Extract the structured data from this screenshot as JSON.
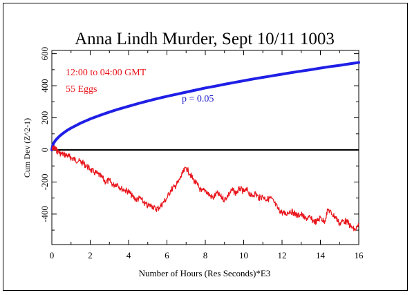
{
  "chart_data": {
    "type": "line",
    "title": "Anna Lindh Murder, Sept 10/11 1003",
    "xlabel": "Number of Hours (Res Seconds)*E3",
    "ylabel": "Cum Dev (Z^2-1)",
    "xlim": [
      0,
      16
    ],
    "ylim": [
      -590,
      620
    ],
    "x_ticks": [
      0,
      2,
      4,
      6,
      8,
      10,
      12,
      14,
      16
    ],
    "y_ticks": [
      -400,
      -200,
      0,
      200,
      400,
      600
    ],
    "annotations": [
      {
        "text": "12:00 to 04:00 GMT",
        "color": "#e8141a"
      },
      {
        "text": "55 Eggs",
        "color": "#e8141a"
      },
      {
        "text": "p = 0.05",
        "color": "#1a1acc"
      }
    ],
    "zero_line": true,
    "colors": {
      "cumdev": "#e8141a",
      "envelope": "#1f1fe6",
      "axis": "#000000"
    },
    "series": [
      {
        "role": "cumulative-deviation",
        "color": "#e8141a",
        "x": [
          0,
          0.1,
          0.2,
          0.3,
          0.5,
          0.7,
          0.9,
          1.0,
          1.2,
          1.4,
          1.6,
          1.8,
          2.0,
          2.2,
          2.4,
          2.6,
          2.8,
          3.0,
          3.2,
          3.4,
          3.6,
          3.8,
          4.0,
          4.2,
          4.4,
          4.6,
          4.8,
          5.0,
          5.2,
          5.4,
          5.6,
          5.8,
          6.0,
          6.2,
          6.4,
          6.6,
          6.8,
          7.0,
          7.2,
          7.4,
          7.6,
          7.8,
          8.0,
          8.2,
          8.4,
          8.6,
          8.8,
          9.0,
          9.2,
          9.4,
          9.6,
          9.8,
          10.0,
          10.2,
          10.4,
          10.6,
          10.8,
          11.0,
          11.2,
          11.4,
          11.6,
          11.8,
          12.0,
          12.2,
          12.4,
          12.6,
          12.8,
          13.0,
          13.2,
          13.4,
          13.6,
          13.8,
          14.0,
          14.2,
          14.4,
          14.6,
          14.8,
          15.0,
          15.2,
          15.4,
          15.6,
          15.8,
          16.0
        ],
        "values": [
          0,
          15,
          5,
          -10,
          -25,
          -30,
          -40,
          -50,
          -60,
          -70,
          -80,
          -100,
          -120,
          -140,
          -150,
          -170,
          -200,
          -190,
          -220,
          -210,
          -240,
          -250,
          -260,
          -290,
          -310,
          -300,
          -330,
          -350,
          -345,
          -370,
          -360,
          -330,
          -300,
          -250,
          -230,
          -200,
          -150,
          -110,
          -150,
          -190,
          -220,
          -260,
          -250,
          -280,
          -300,
          -270,
          -290,
          -310,
          -280,
          -250,
          -270,
          -240,
          -260,
          -250,
          -290,
          -270,
          -300,
          -290,
          -310,
          -300,
          -330,
          -370,
          -390,
          -400,
          -380,
          -390,
          -410,
          -400,
          -430,
          -420,
          -440,
          -450,
          -420,
          -450,
          -370,
          -400,
          -420,
          -460,
          -440,
          -450,
          -480,
          -500,
          -470
        ]
      },
      {
        "role": "envelope",
        "name": "p = 0.05",
        "color": "#1f1fe6",
        "x": [
          0,
          0.05,
          0.1,
          0.2,
          0.4,
          0.6,
          0.8,
          1.0,
          1.5,
          2.0,
          2.5,
          3.0,
          3.5,
          4.0,
          4.5,
          5.0,
          5.5,
          6.0,
          6.5,
          7.0,
          7.5,
          8.0,
          8.5,
          9.0,
          9.5,
          10.0,
          10.5,
          11.0,
          11.5,
          12.0,
          12.5,
          13.0,
          13.5,
          14.0,
          14.5,
          15.0,
          15.5,
          16.0
        ],
        "values": [
          0,
          30,
          43,
          61,
          86,
          105,
          122,
          136,
          167,
          193,
          215,
          236,
          255,
          272,
          289,
          305,
          320,
          334,
          347,
          360,
          373,
          386,
          397,
          409,
          420,
          431,
          442,
          452,
          462,
          472,
          482,
          491,
          500,
          510,
          519,
          527,
          536,
          545
        ]
      }
    ]
  }
}
